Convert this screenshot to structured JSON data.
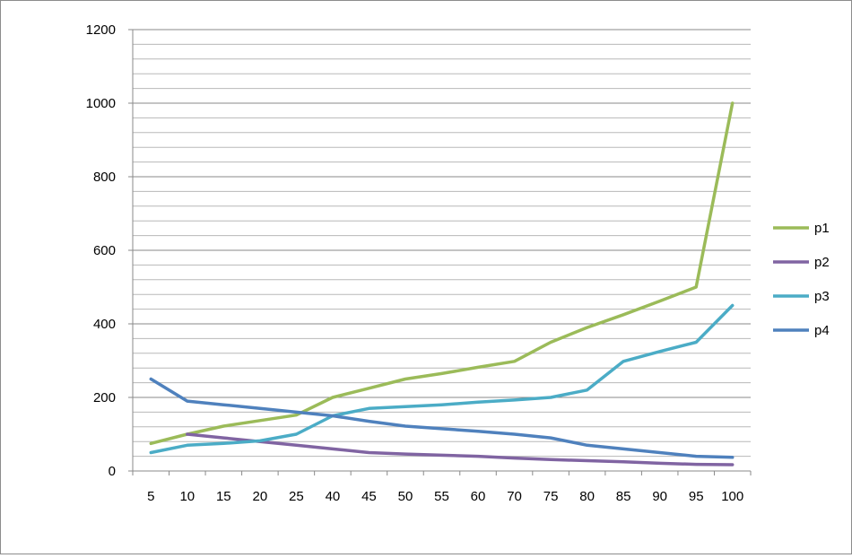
{
  "chart_data": {
    "type": "line",
    "title": "",
    "xlabel": "",
    "ylabel": "",
    "categories": [
      "5",
      "10",
      "15",
      "20",
      "25",
      "40",
      "45",
      "50",
      "55",
      "60",
      "70",
      "75",
      "80",
      "85",
      "90",
      "95",
      "100"
    ],
    "ylim": [
      0,
      1200
    ],
    "yticks": [
      "0",
      "200",
      "400",
      "600",
      "800",
      "1000",
      "1200"
    ],
    "grid": true,
    "minor_grid": true,
    "legend": "right",
    "series": [
      {
        "name": "p1",
        "color": "#9BBB59",
        "values": [
          75,
          100,
          122,
          137,
          152,
          200,
          225,
          250,
          265,
          282,
          298,
          350,
          390,
          425,
          462,
          500,
          1000
        ]
      },
      {
        "name": "p2",
        "color": "#8064A2",
        "values": [
          null,
          100,
          90,
          80,
          70,
          60,
          50,
          46,
          43,
          40,
          35,
          31,
          28,
          25,
          21,
          18,
          17
        ]
      },
      {
        "name": "p3",
        "color": "#4BACC6",
        "values": [
          50,
          70,
          75,
          82,
          100,
          150,
          170,
          175,
          180,
          187,
          193,
          200,
          220,
          298,
          325,
          350,
          450
        ]
      },
      {
        "name": "p4",
        "color": "#4F81BD",
        "values": [
          250,
          190,
          180,
          170,
          160,
          150,
          135,
          122,
          115,
          108,
          100,
          90,
          70,
          60,
          50,
          40,
          37
        ]
      }
    ]
  }
}
